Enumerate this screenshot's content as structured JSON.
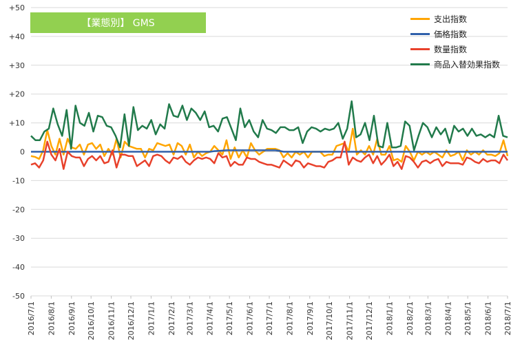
{
  "colors": {
    "title_bg": "#92D050",
    "grid": "#D9D9D9",
    "axis_zero": "#BFBFBF",
    "spending": "#FFA500",
    "price": "#2E5FAA",
    "quantity": "#E8412B",
    "mix": "#217A4B"
  },
  "chart_data": {
    "type": "line",
    "title": "【業態別】 GMS",
    "xlabel": "",
    "ylabel": "",
    "ylim": [
      -50,
      50
    ],
    "y_ticks": [
      "+50",
      "+40",
      "+30",
      "+20",
      "+10",
      "0",
      "-10",
      "-20",
      "-30",
      "-40",
      "-50"
    ],
    "y_tick_values": [
      50,
      40,
      30,
      20,
      10,
      0,
      -10,
      -20,
      -30,
      -40,
      -50
    ],
    "x_tick_labels": [
      "2016/7/1",
      "2016/8/1",
      "2016/9/1",
      "2016/10/1",
      "2016/11/1",
      "2016/12/1",
      "2017/1/1",
      "2017/2/1",
      "2017/3/1",
      "2017/4/1",
      "2017/5/1",
      "2017/6/1",
      "2017/7/1",
      "2017/8/1",
      "2017/9/1",
      "2017/10/1",
      "2017/11/1",
      "2017/12/1",
      "2018/1/1",
      "2018/2/1",
      "2018/3/1",
      "2018/4/1",
      "2018/5/1",
      "2018/6/1",
      "2018/7/1"
    ],
    "x_start": "2016-07-01",
    "x_end": "2018-07-01",
    "legend_position": "top-right",
    "grid": true,
    "series": [
      {
        "name": "支出指数",
        "color_key": "spending",
        "values": [
          -1.5,
          -1.8,
          -2.5,
          0.5,
          7.5,
          2,
          -1,
          4.5,
          -1,
          4.5,
          1.5,
          1,
          2.5,
          -1,
          2.5,
          3,
          1,
          2.5,
          -1.5,
          1,
          -1,
          4.5,
          -2,
          3.5,
          2,
          1.5,
          1,
          1,
          -2,
          1,
          0.5,
          3,
          2.5,
          2,
          2.5,
          -1,
          3,
          2,
          -1,
          2.5,
          -2,
          0,
          -1.5,
          -0.5,
          0,
          2,
          0.5,
          -1,
          4,
          -2.5,
          1.5,
          -2,
          0.5,
          -2,
          3,
          0.5,
          -1,
          0,
          1,
          1,
          1,
          0.5,
          -2,
          -0.5,
          -2,
          0,
          -1,
          0,
          -2,
          0,
          0,
          0,
          -1.5,
          -1,
          -1,
          2,
          2.5,
          3,
          0,
          8,
          -1,
          0.5,
          -1,
          2,
          -1,
          4.5,
          -1,
          -1,
          2,
          -3,
          -2.5,
          -3.5,
          2,
          0,
          -3,
          0,
          -1,
          0,
          -1,
          0,
          -1,
          -2,
          0.5,
          -1.5,
          -1,
          0,
          -3,
          0.5,
          -1,
          0,
          -1,
          0.5,
          -1,
          -1,
          -1.5,
          -0.5,
          4,
          -1.5
        ]
      },
      {
        "name": "価格指数",
        "color_key": "price",
        "values": [
          0,
          0,
          0,
          0,
          0,
          0,
          0,
          0,
          0,
          0,
          0,
          0,
          0,
          0,
          0,
          0,
          0,
          0,
          0,
          0,
          0,
          0,
          0,
          0,
          0,
          0,
          0,
          0,
          0,
          0,
          0,
          0,
          0,
          0,
          0,
          0,
          0,
          0,
          0,
          0,
          0,
          0,
          0,
          0,
          0,
          0.2,
          0.3,
          0.4,
          0.5,
          0.5,
          0.5,
          0.5,
          0.5,
          0.5,
          0.5,
          0.5,
          0.5,
          0.5,
          0.5,
          0.5,
          0.5,
          0.3,
          0,
          0,
          0,
          0,
          0,
          0,
          0,
          0,
          0,
          0,
          0,
          0,
          0,
          0,
          0,
          0,
          0,
          0,
          0,
          0,
          0,
          0,
          0,
          0,
          0,
          0,
          0,
          0,
          0,
          0,
          0,
          0,
          0,
          0,
          0,
          0,
          0,
          0,
          0,
          0,
          0,
          0,
          0,
          0,
          0,
          0,
          0,
          0,
          0,
          0,
          0,
          0,
          0,
          0,
          0,
          0
        ]
      },
      {
        "name": "数量指数",
        "color_key": "quantity",
        "values": [
          -4.5,
          -4,
          -5.5,
          -3,
          3.5,
          -1,
          -3,
          1,
          -6,
          0,
          -1.5,
          -2,
          -2,
          -5,
          -2.5,
          -1.5,
          -3,
          -1.5,
          -4,
          -3.5,
          0.5,
          -5.5,
          -1,
          -1,
          -1.5,
          -1.5,
          -5,
          -4,
          -3,
          -5,
          -1.5,
          -1,
          -1.5,
          -3,
          -4,
          -2,
          -2.5,
          -1.5,
          -3.5,
          -4.5,
          -3,
          -2,
          -2.5,
          -2,
          -2.5,
          -4,
          -0.5,
          -2,
          -1.5,
          -5,
          -3.5,
          -4.5,
          -4.5,
          -2,
          -2.5,
          -2.5,
          -3.5,
          -4,
          -4.5,
          -4.5,
          -5,
          -5.5,
          -3,
          -4,
          -5,
          -3,
          -3.5,
          -5.5,
          -4,
          -4.5,
          -5,
          -5,
          -5.5,
          -3.5,
          -3,
          -2,
          -2,
          3.5,
          -4.5,
          -2,
          -3,
          -3.5,
          -2,
          -1,
          -4,
          -1.5,
          -4.5,
          -3,
          -1,
          -5,
          -3.5,
          -6,
          -1.5,
          -2,
          -3.5,
          -5.5,
          -3.5,
          -3,
          -4,
          -3,
          -2.5,
          -5,
          -3.5,
          -4,
          -4,
          -4,
          -4.5,
          -2,
          -2.5,
          -3.5,
          -4,
          -2.5,
          -3.5,
          -3,
          -3,
          -4,
          -1,
          -3
        ]
      },
      {
        "name": "商品入替効果指数",
        "color_key": "mix",
        "values": [
          5.5,
          4,
          4,
          7,
          8,
          15,
          9.5,
          5.5,
          14.5,
          1,
          16,
          10,
          9,
          13.5,
          7,
          12.5,
          12,
          9,
          8.5,
          5.5,
          1.5,
          13,
          2,
          15.5,
          7.5,
          9,
          8,
          11,
          6,
          9.5,
          8,
          16.5,
          12.5,
          12,
          16,
          11,
          15,
          13.5,
          11,
          14,
          8.5,
          9,
          7,
          11.5,
          12,
          8,
          4,
          15,
          8.5,
          11,
          7,
          5,
          11,
          8,
          7.5,
          6.5,
          8.5,
          8.5,
          7.5,
          7.5,
          8.5,
          3,
          7,
          8.5,
          8,
          7,
          8,
          7.5,
          8,
          10,
          4.5,
          8,
          17.5,
          5,
          6,
          10,
          4,
          12.5,
          2,
          1.5,
          10,
          1.5,
          1.5,
          2,
          10.5,
          9,
          0.5,
          5.5,
          10,
          8.5,
          5,
          8.5,
          6,
          8,
          3,
          9,
          7,
          8,
          5.5,
          8,
          5.5,
          6,
          5,
          6,
          5,
          12.5,
          5.5,
          5
        ]
      }
    ]
  }
}
